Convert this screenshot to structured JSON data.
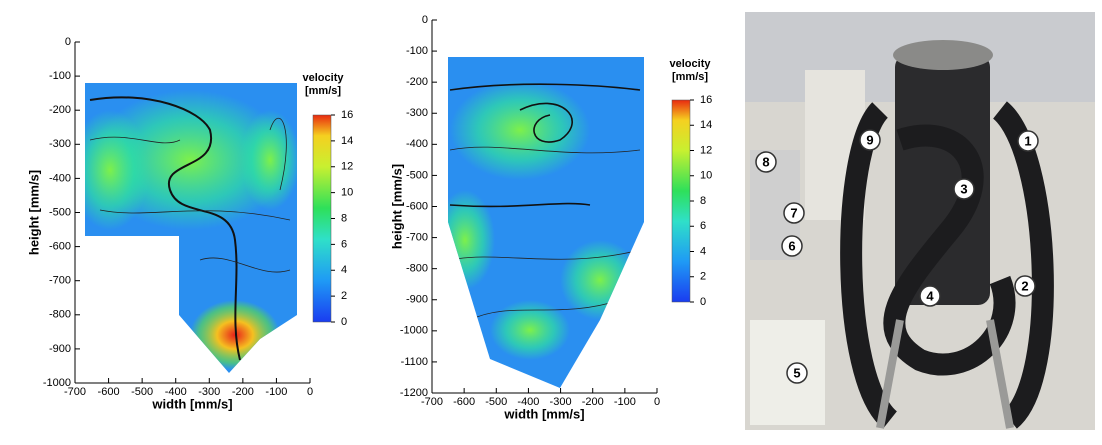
{
  "panels": [
    {
      "xlabel": "width [mm/s]",
      "ylabel": "height [mm/s]",
      "xticks": [
        -700,
        -600,
        -500,
        -400,
        -300,
        -200,
        -100,
        0
      ],
      "yticks": [
        0,
        -100,
        -200,
        -300,
        -400,
        -500,
        -600,
        -700,
        -800,
        -900,
        -1000
      ],
      "colorbar": {
        "title": [
          "velocity",
          "[mm/s]"
        ],
        "ticks": [
          0,
          2,
          4,
          6,
          8,
          10,
          12,
          14,
          16
        ]
      }
    },
    {
      "xlabel": "width [mm/s]",
      "ylabel": "height [mm/s]",
      "xticks": [
        -700,
        -600,
        -500,
        -400,
        -300,
        -200,
        -100,
        0
      ],
      "yticks": [
        0,
        -100,
        -200,
        -300,
        -400,
        -500,
        -600,
        -700,
        -800,
        -900,
        -1000,
        -1100,
        -1200
      ],
      "colorbar": {
        "title": [
          "velocity",
          "[mm/s]"
        ],
        "ticks": [
          0,
          2,
          4,
          6,
          8,
          10,
          12,
          14,
          16
        ]
      }
    }
  ],
  "photo": {
    "labels": [
      "1",
      "2",
      "3",
      "4",
      "5",
      "6",
      "7",
      "8",
      "9"
    ]
  }
}
